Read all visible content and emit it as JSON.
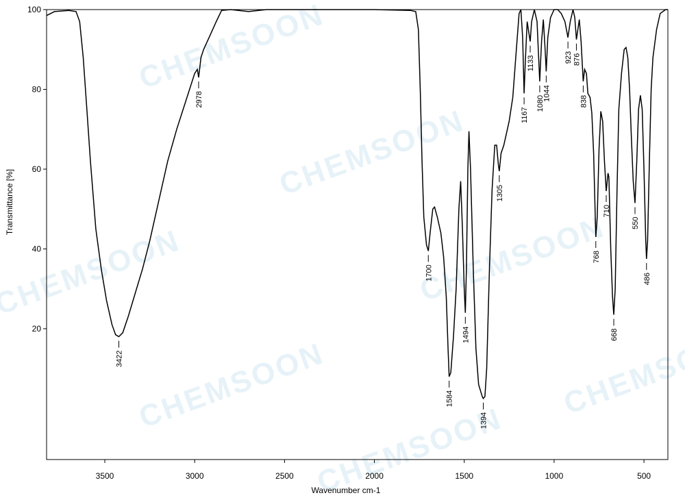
{
  "chart_data": {
    "type": "line",
    "xlabel": "Wavenumber cm-1",
    "ylabel": "Transmittance [%]",
    "watermark": "CHEMSOON",
    "xlim": [
      3824,
      367
    ],
    "ylim": [
      -12.8,
      100
    ],
    "xticks": [
      3500,
      3000,
      2500,
      2000,
      1500,
      1000,
      500
    ],
    "yticks": [
      20,
      40,
      60,
      80,
      100
    ],
    "color": "#000000",
    "peaks": [
      3422,
      2978,
      1700,
      1584,
      1494,
      1394,
      1305,
      1167,
      1133,
      1080,
      1044,
      923,
      876,
      838,
      768,
      710,
      668,
      550,
      486
    ],
    "x": [
      3824,
      3780,
      3700,
      3660,
      3640,
      3620,
      3600,
      3580,
      3550,
      3520,
      3490,
      3460,
      3440,
      3422,
      3400,
      3370,
      3330,
      3290,
      3250,
      3200,
      3150,
      3100,
      3050,
      3000,
      2985,
      2978,
      2965,
      2950,
      2920,
      2880,
      2850,
      2800,
      2700,
      2600,
      2400,
      2200,
      2000,
      1800,
      1770,
      1755,
      1745,
      1735,
      1725,
      1710,
      1700,
      1690,
      1675,
      1665,
      1650,
      1630,
      1615,
      1600,
      1590,
      1584,
      1575,
      1560,
      1545,
      1530,
      1520,
      1510,
      1500,
      1494,
      1488,
      1480,
      1474,
      1465,
      1450,
      1435,
      1420,
      1400,
      1394,
      1385,
      1375,
      1360,
      1345,
      1330,
      1320,
      1310,
      1305,
      1295,
      1280,
      1265,
      1250,
      1230,
      1210,
      1195,
      1185,
      1175,
      1167,
      1160,
      1150,
      1140,
      1133,
      1125,
      1110,
      1095,
      1080,
      1070,
      1060,
      1050,
      1044,
      1035,
      1020,
      1000,
      980,
      960,
      940,
      923,
      910,
      895,
      885,
      876,
      868,
      860,
      850,
      838,
      830,
      820,
      812,
      800,
      790,
      780,
      770,
      768,
      760,
      750,
      740,
      730,
      720,
      710,
      700,
      695,
      685,
      675,
      668,
      660,
      650,
      640,
      625,
      610,
      600,
      590,
      580,
      570,
      560,
      550,
      540,
      530,
      520,
      510,
      500,
      490,
      486,
      480,
      470,
      460,
      450,
      430,
      410,
      380,
      367
    ],
    "values": [
      98.5,
      99.5,
      99.8,
      99.5,
      97,
      88,
      75,
      62,
      45,
      35,
      27,
      21,
      18.5,
      18,
      19,
      23,
      29,
      35,
      42,
      52,
      62,
      70,
      77,
      84,
      85,
      83,
      88,
      90,
      93,
      97,
      99.8,
      100,
      99.5,
      100,
      100,
      100,
      100,
      99.8,
      99.5,
      95,
      80,
      62,
      48,
      41,
      39.5,
      44,
      50,
      50.5,
      48,
      44,
      38,
      28,
      15,
      8,
      9,
      18,
      30,
      50,
      57,
      45,
      30,
      24,
      35,
      60,
      69.5,
      60,
      35,
      15,
      6,
      3,
      2.5,
      3,
      10,
      35,
      55,
      66,
      66,
      61,
      59.5,
      64,
      66,
      69,
      72,
      78,
      90,
      99,
      100,
      93,
      79,
      87,
      97,
      94,
      92,
      97,
      100,
      97,
      82,
      92,
      97.5,
      90,
      84.5,
      93,
      98,
      100,
      100,
      99,
      97,
      93,
      97,
      100,
      98,
      92.5,
      95,
      97.5,
      92,
      82,
      85,
      84,
      79,
      78,
      74,
      64,
      46,
      43,
      48,
      65,
      74.5,
      72,
      62,
      54.5,
      59,
      58,
      40,
      28,
      23.5,
      30,
      55,
      75,
      84,
      90,
      90.5,
      88,
      80,
      68,
      57,
      51.5,
      62,
      75,
      78.5,
      75,
      60,
      42,
      37.5,
      42,
      62,
      80,
      88,
      95,
      99,
      100,
      100
    ]
  }
}
